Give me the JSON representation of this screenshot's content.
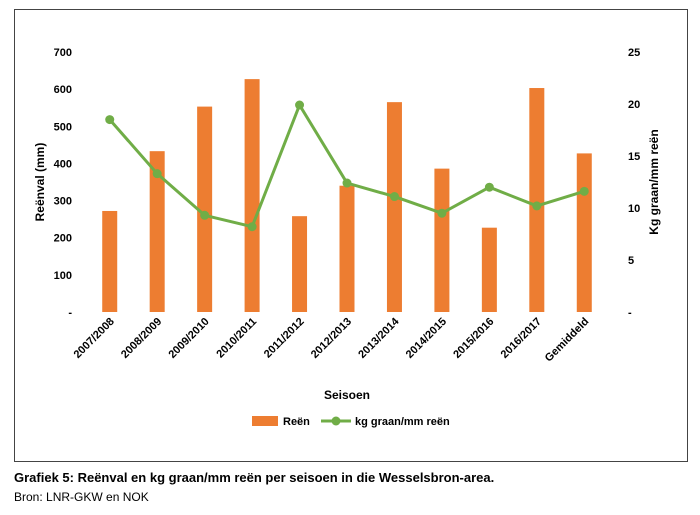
{
  "caption": "Grafiek 5: Reënval en kg graan/mm reën per seisoen in die Wesselsbron-area.",
  "source": "Bron: LNR-GKW en NOK",
  "chart_data": {
    "type": "bar+line",
    "categories": [
      "2007/2008",
      "2008/2009",
      "2009/2010",
      "2010/2011",
      "2011/2012",
      "2012/2013",
      "2013/2014",
      "2014/2015",
      "2015/2016",
      "2016/2017",
      "Gemiddeld"
    ],
    "series": [
      {
        "name": "Reën",
        "type": "bar",
        "axis": "left",
        "color": "#ED7D31",
        "values": [
          272,
          433,
          553,
          627,
          258,
          340,
          565,
          386,
          227,
          603,
          427
        ]
      },
      {
        "name": "kg graan/mm reën",
        "type": "line",
        "axis": "right",
        "color": "#70AD47",
        "values": [
          18.5,
          13.3,
          9.3,
          8.2,
          19.9,
          12.4,
          11.1,
          9.5,
          12.0,
          10.2,
          11.6
        ]
      }
    ],
    "xlabel": "Seisoen",
    "ylabel": "Reënval (mm)",
    "y2label": "Kg graan/mm reën",
    "ylim": [
      0,
      700
    ],
    "y2lim": [
      0,
      25
    ],
    "yticks": [
      "-",
      "100",
      "200",
      "300",
      "400",
      "500",
      "600",
      "700"
    ],
    "y2ticks": [
      "-",
      "5",
      "10",
      "15",
      "20",
      "25"
    ],
    "grid": false,
    "legend_position": "bottom"
  }
}
